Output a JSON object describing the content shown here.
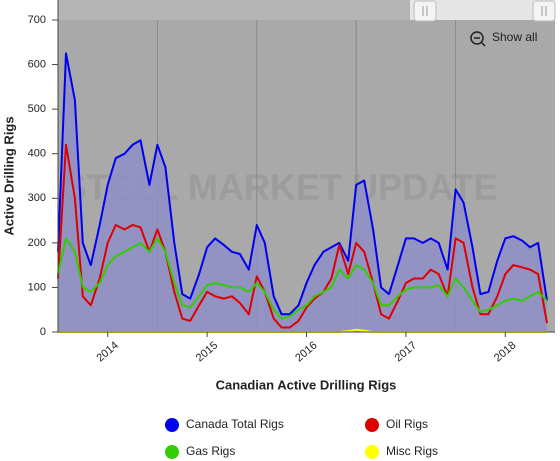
{
  "chart_data": {
    "type": "line",
    "title": "Canadian Active Drilling Rigs",
    "y_axis_label": "Active Drilling Rigs",
    "watermark": "STEEL MARKET UPDATE",
    "show_all": "Show all",
    "x": [
      2014.0,
      2014.08,
      2014.17,
      2014.25,
      2014.33,
      2014.42,
      2014.5,
      2014.58,
      2014.67,
      2014.75,
      2014.83,
      2014.92,
      2015.0,
      2015.08,
      2015.17,
      2015.25,
      2015.33,
      2015.42,
      2015.5,
      2015.58,
      2015.67,
      2015.75,
      2015.83,
      2015.92,
      2016.0,
      2016.08,
      2016.17,
      2016.25,
      2016.33,
      2016.42,
      2016.5,
      2016.58,
      2016.67,
      2016.75,
      2016.83,
      2016.92,
      2017.0,
      2017.08,
      2017.17,
      2017.25,
      2017.33,
      2017.42,
      2017.5,
      2017.58,
      2017.67,
      2017.75,
      2017.83,
      2017.92,
      2018.0,
      2018.08,
      2018.17,
      2018.25,
      2018.33,
      2018.42,
      2018.5,
      2018.58,
      2018.67,
      2018.75,
      2018.83,
      2018.92
    ],
    "xlim": [
      2014,
      2019
    ],
    "xticks": [
      {
        "value": 2014.5,
        "label": "2014"
      },
      {
        "value": 2015.5,
        "label": "2015"
      },
      {
        "value": 2016.5,
        "label": "2016"
      },
      {
        "value": 2017.5,
        "label": "2017"
      },
      {
        "value": 2018.5,
        "label": "2018"
      }
    ],
    "xgrid": [
      2015,
      2016,
      2017,
      2018
    ],
    "ylim": [
      0,
      700
    ],
    "yticks": [
      0,
      100,
      200,
      300,
      400,
      500,
      600,
      700
    ],
    "series": [
      {
        "name": "Canada Total Rigs",
        "color": "#0000ee",
        "fill": "#8f8fc8",
        "values": [
          180,
          625,
          520,
          200,
          150,
          240,
          330,
          390,
          400,
          420,
          430,
          330,
          420,
          370,
          200,
          85,
          75,
          130,
          190,
          210,
          195,
          180,
          175,
          140,
          240,
          200,
          80,
          40,
          40,
          60,
          110,
          150,
          180,
          190,
          200,
          160,
          330,
          340,
          230,
          100,
          85,
          150,
          210,
          210,
          200,
          210,
          200,
          140,
          320,
          290,
          190,
          85,
          90,
          160,
          210,
          215,
          205,
          190,
          200,
          70
        ]
      },
      {
        "name": "Oil Rigs",
        "color": "#dd0000",
        "values": [
          120,
          420,
          300,
          80,
          60,
          120,
          200,
          240,
          230,
          240,
          235,
          180,
          230,
          180,
          90,
          30,
          25,
          60,
          90,
          80,
          75,
          80,
          65,
          40,
          125,
          90,
          30,
          10,
          10,
          25,
          55,
          75,
          90,
          120,
          195,
          130,
          200,
          180,
          110,
          40,
          30,
          70,
          110,
          120,
          120,
          140,
          130,
          80,
          210,
          200,
          100,
          40,
          40,
          80,
          130,
          150,
          145,
          140,
          130,
          20
        ]
      },
      {
        "name": "Gas Rigs",
        "color": "#33cc00",
        "values": [
          130,
          210,
          180,
          100,
          90,
          110,
          150,
          170,
          180,
          190,
          200,
          180,
          210,
          180,
          110,
          60,
          55,
          80,
          105,
          110,
          105,
          100,
          100,
          90,
          110,
          90,
          50,
          30,
          35,
          50,
          60,
          80,
          90,
          100,
          140,
          120,
          150,
          140,
          110,
          60,
          60,
          80,
          95,
          100,
          100,
          100,
          105,
          80,
          120,
          100,
          70,
          45,
          50,
          60,
          70,
          75,
          70,
          80,
          90,
          70
        ]
      },
      {
        "name": "Misc Rigs",
        "color": "#ffff00",
        "values": [
          0,
          0,
          0,
          0,
          0,
          0,
          0,
          0,
          0,
          0,
          0,
          0,
          0,
          0,
          0,
          0,
          0,
          0,
          0,
          0,
          0,
          0,
          0,
          0,
          0,
          0,
          0,
          0,
          0,
          0,
          0,
          0,
          0,
          0,
          0,
          2,
          5,
          3,
          0,
          0,
          0,
          0,
          0,
          0,
          0,
          0,
          0,
          0,
          0,
          0,
          0,
          0,
          0,
          0,
          0,
          0,
          0,
          0,
          0,
          0
        ]
      }
    ]
  }
}
